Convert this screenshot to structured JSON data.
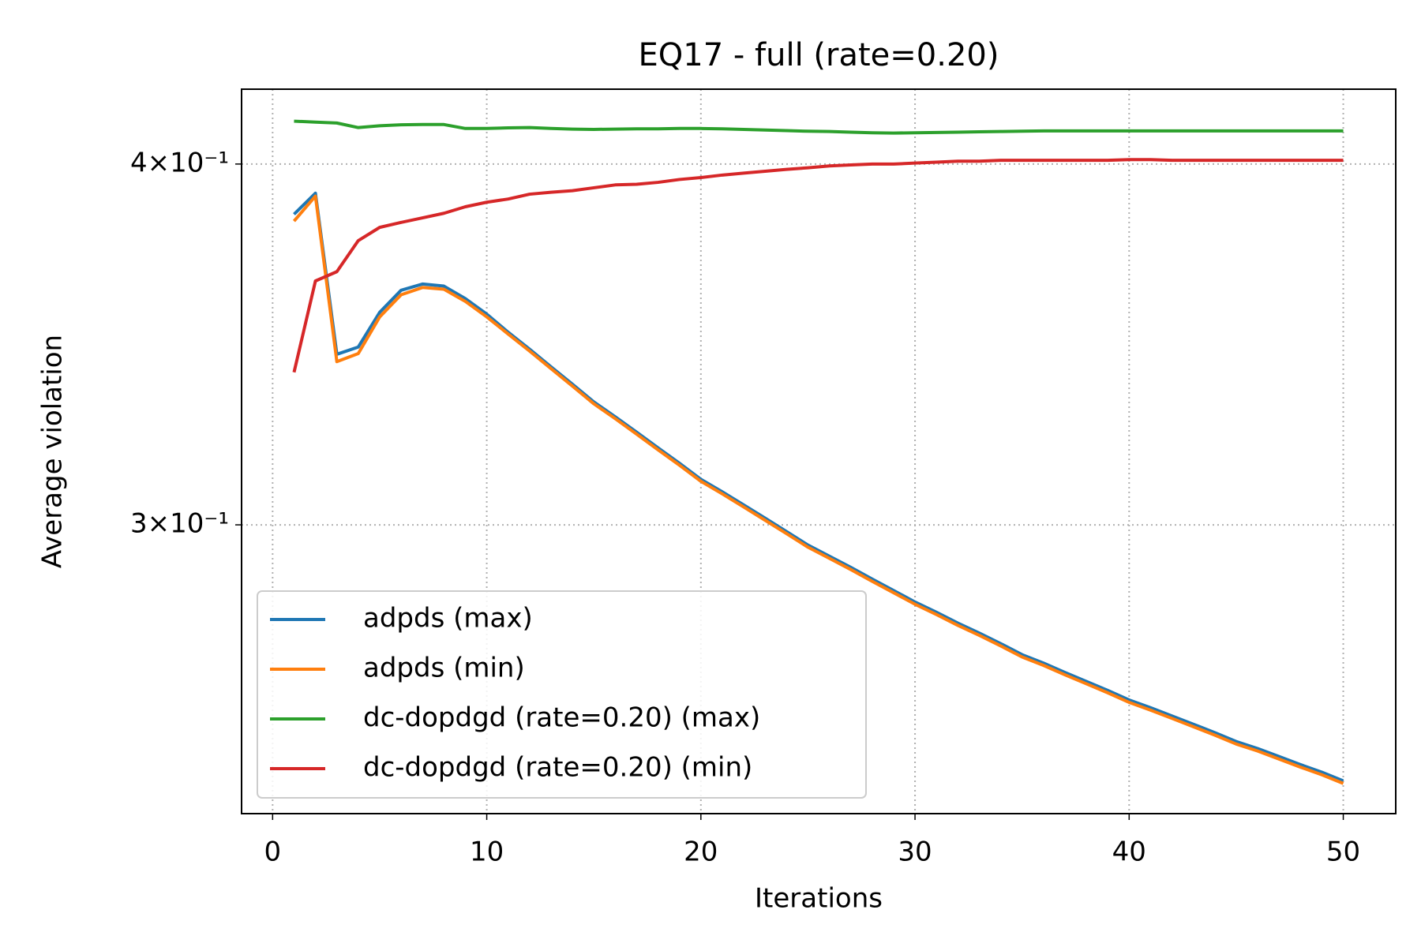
{
  "chart_data": {
    "type": "line",
    "title": "EQ17 - full (rate=0.20)",
    "x_label": "Iterations",
    "y_label": "Average violation",
    "log_y": true,
    "grid": true,
    "legend": "lower left",
    "xlim": [
      -1.45,
      52.45
    ],
    "xticks": [
      0,
      10,
      20,
      30,
      40,
      50
    ],
    "ylim": [
      0.2383,
      0.4246
    ],
    "yticks": [
      {
        "value": 0.3,
        "label": "3×10⁻¹"
      },
      {
        "value": 0.4,
        "label": "4×10⁻¹"
      }
    ],
    "x": [
      1,
      2,
      3,
      4,
      5,
      6,
      7,
      8,
      9,
      10,
      11,
      12,
      13,
      14,
      15,
      16,
      17,
      18,
      19,
      20,
      21,
      22,
      23,
      24,
      25,
      26,
      27,
      28,
      29,
      30,
      31,
      32,
      33,
      34,
      35,
      36,
      37,
      38,
      39,
      40,
      41,
      42,
      43,
      44,
      45,
      46,
      47,
      48,
      49,
      50
    ],
    "series": [
      {
        "name": "adpds (max)",
        "color": "#1f77b4",
        "values": [
          0.3843,
          0.3908,
          0.3437,
          0.3457,
          0.3554,
          0.3617,
          0.3635,
          0.3629,
          0.3593,
          0.3549,
          0.3498,
          0.3451,
          0.3403,
          0.3356,
          0.3309,
          0.327,
          0.323,
          0.319,
          0.3151,
          0.3111,
          0.308,
          0.3048,
          0.3016,
          0.2984,
          0.2952,
          0.2926,
          0.29,
          0.2873,
          0.2847,
          0.2821,
          0.2798,
          0.2774,
          0.2752,
          0.2729,
          0.2705,
          0.2687,
          0.2667,
          0.2648,
          0.2629,
          0.2609,
          0.2593,
          0.2576,
          0.2559,
          0.2542,
          0.2524,
          0.251,
          0.2494,
          0.2478,
          0.2463,
          0.2446
        ]
      },
      {
        "name": "adpds (min)",
        "color": "#ff7f0e",
        "values": [
          0.3822,
          0.3899,
          0.3417,
          0.3439,
          0.3541,
          0.3604,
          0.3625,
          0.362,
          0.3585,
          0.3541,
          0.3493,
          0.3446,
          0.3398,
          0.3351,
          0.3304,
          0.3265,
          0.3225,
          0.3185,
          0.3146,
          0.3106,
          0.3075,
          0.3043,
          0.3011,
          0.2979,
          0.2947,
          0.2921,
          0.2895,
          0.2868,
          0.2842,
          0.2816,
          0.2793,
          0.2769,
          0.2747,
          0.2724,
          0.27,
          0.2682,
          0.2662,
          0.2643,
          0.2624,
          0.2604,
          0.2588,
          0.2571,
          0.2554,
          0.2537,
          0.2519,
          0.2505,
          0.2489,
          0.2473,
          0.2458,
          0.2441
        ]
      },
      {
        "name": "dc-dopdgd (rate=0.20) (max)",
        "color": "#2ca02c",
        "values": [
          0.4139,
          0.4136,
          0.4133,
          0.4118,
          0.4124,
          0.4127,
          0.4128,
          0.4128,
          0.4115,
          0.4115,
          0.4117,
          0.4118,
          0.4115,
          0.4113,
          0.4112,
          0.4113,
          0.4114,
          0.4114,
          0.4115,
          0.4115,
          0.4114,
          0.4112,
          0.411,
          0.4108,
          0.4106,
          0.4105,
          0.4103,
          0.4101,
          0.41,
          0.4101,
          0.4102,
          0.4103,
          0.4104,
          0.4105,
          0.4106,
          0.4107,
          0.4107,
          0.4107,
          0.4107,
          0.4107,
          0.4107,
          0.4107,
          0.4107,
          0.4107,
          0.4107,
          0.4107,
          0.4107,
          0.4107,
          0.4107,
          0.4107
        ]
      },
      {
        "name": "dc-dopdgd (rate=0.20) (min)",
        "color": "#d62728",
        "values": [
          0.3388,
          0.3644,
          0.3671,
          0.3763,
          0.3803,
          0.3818,
          0.3832,
          0.3846,
          0.3866,
          0.388,
          0.389,
          0.3905,
          0.3911,
          0.3916,
          0.3925,
          0.3934,
          0.3936,
          0.3942,
          0.3951,
          0.3957,
          0.3965,
          0.3971,
          0.3977,
          0.3983,
          0.3988,
          0.3994,
          0.3997,
          0.4,
          0.4,
          0.4003,
          0.4006,
          0.4009,
          0.4009,
          0.4012,
          0.4012,
          0.4012,
          0.4012,
          0.4012,
          0.4012,
          0.4014,
          0.4014,
          0.4012,
          0.4012,
          0.4012,
          0.4012,
          0.4012,
          0.4012,
          0.4012,
          0.4012,
          0.4012
        ]
      }
    ]
  }
}
